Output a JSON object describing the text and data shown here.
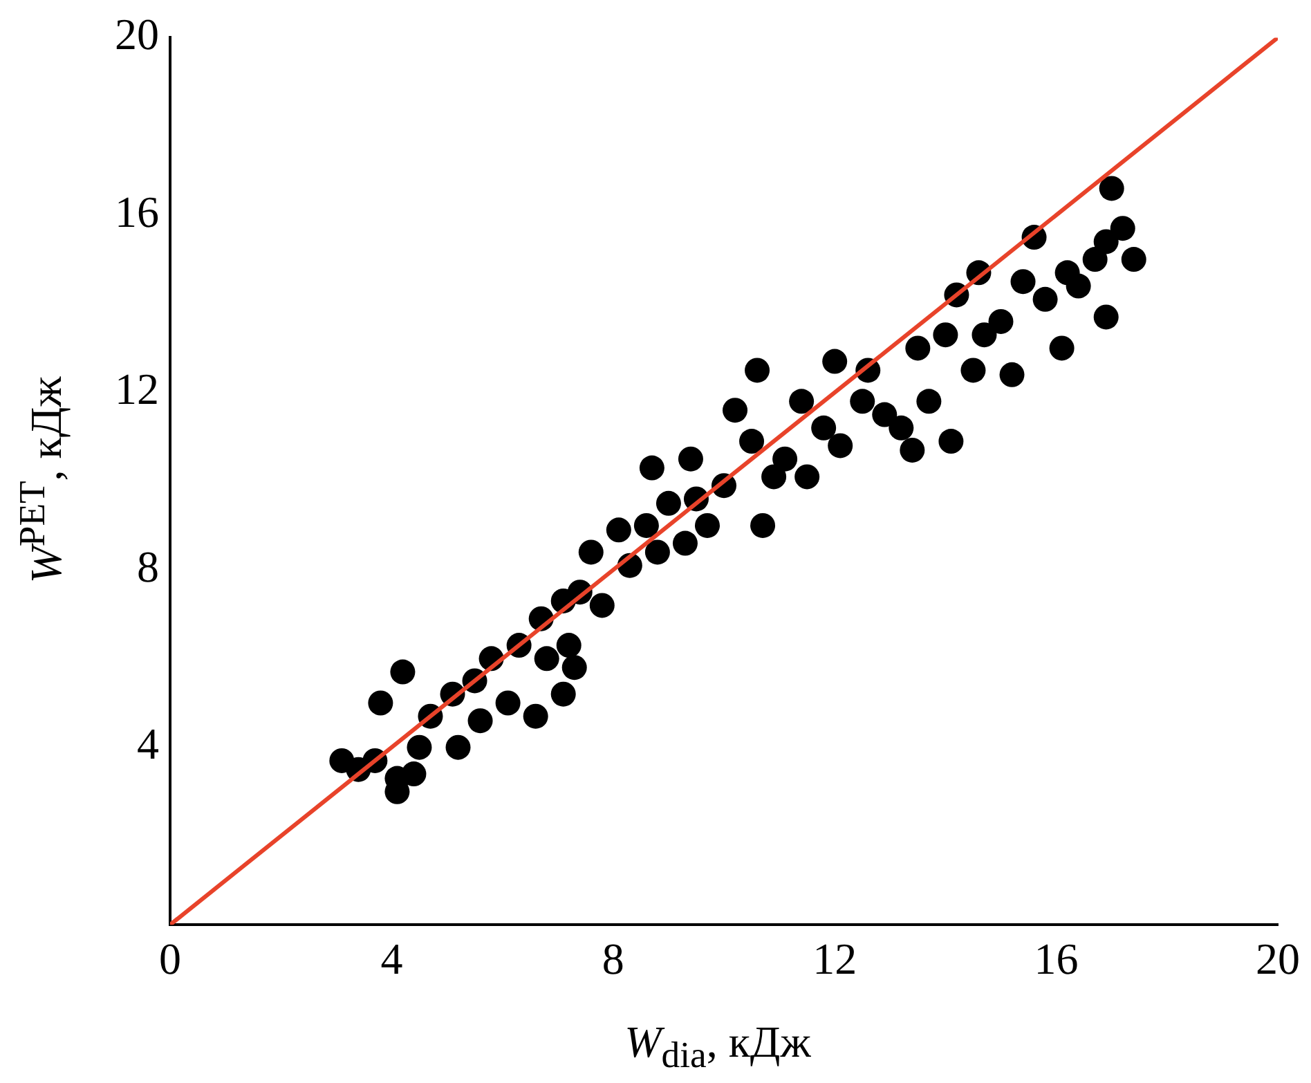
{
  "chart_data": {
    "type": "scatter",
    "xlabel": "W$_{dia}$, кДж",
    "ylabel": "W$^{PET}$, кДж",
    "xlim": [
      0,
      20
    ],
    "ylim": [
      0,
      20
    ],
    "xticks": [
      0,
      4,
      8,
      12,
      16,
      20
    ],
    "yticks": [
      4,
      8,
      12,
      16,
      20
    ],
    "grid": false,
    "legend": false,
    "marker": "circle",
    "series": [
      {
        "color": "#000000",
        "x": [
          3.1,
          3.4,
          3.7,
          3.8,
          4.1,
          4.1,
          4.2,
          4.4,
          4.5,
          4.7,
          5.1,
          5.2,
          5.5,
          5.6,
          5.8,
          6.1,
          6.3,
          6.6,
          6.7,
          6.8,
          7.1,
          7.2,
          7.3,
          7.1,
          7.4,
          7.6,
          7.8,
          8.1,
          8.3,
          8.6,
          8.7,
          8.8,
          9.0,
          9.3,
          9.4,
          9.5,
          9.7,
          10.0,
          10.2,
          10.5,
          10.6,
          10.7,
          10.9,
          11.1,
          11.4,
          11.5,
          11.8,
          12.0,
          12.1,
          12.5,
          12.6,
          12.9,
          13.2,
          13.4,
          13.5,
          13.7,
          14.0,
          14.1,
          14.2,
          14.5,
          14.6,
          14.7,
          15.0,
          15.2,
          15.4,
          15.6,
          15.8,
          16.1,
          16.2,
          16.4,
          16.7,
          16.9,
          16.9,
          17.0,
          17.2,
          17.4
        ],
        "values": [
          3.7,
          3.5,
          3.7,
          5.0,
          3.3,
          3.0,
          5.7,
          3.4,
          4.0,
          4.7,
          5.2,
          4.0,
          5.5,
          4.6,
          6.0,
          5.0,
          6.3,
          4.7,
          6.9,
          6.0,
          7.3,
          6.3,
          5.8,
          5.2,
          7.5,
          8.4,
          7.2,
          8.9,
          8.1,
          9.0,
          10.3,
          8.4,
          9.5,
          8.6,
          10.5,
          9.6,
          9.0,
          9.9,
          11.6,
          10.9,
          12.5,
          9.0,
          10.1,
          10.5,
          11.8,
          10.1,
          11.2,
          12.7,
          10.8,
          11.8,
          12.5,
          11.5,
          11.2,
          10.7,
          13.0,
          11.8,
          13.3,
          10.9,
          14.2,
          12.5,
          14.7,
          13.3,
          13.6,
          12.4,
          14.5,
          15.5,
          14.1,
          13.0,
          14.7,
          14.4,
          15.0,
          13.7,
          15.4,
          16.6,
          15.7,
          15.0
        ]
      },
      {
        "type": "line",
        "color": "#e8432a",
        "x": [
          0,
          20
        ],
        "values": [
          0,
          20
        ],
        "marker": "none",
        "line_style": "solid"
      }
    ]
  }
}
